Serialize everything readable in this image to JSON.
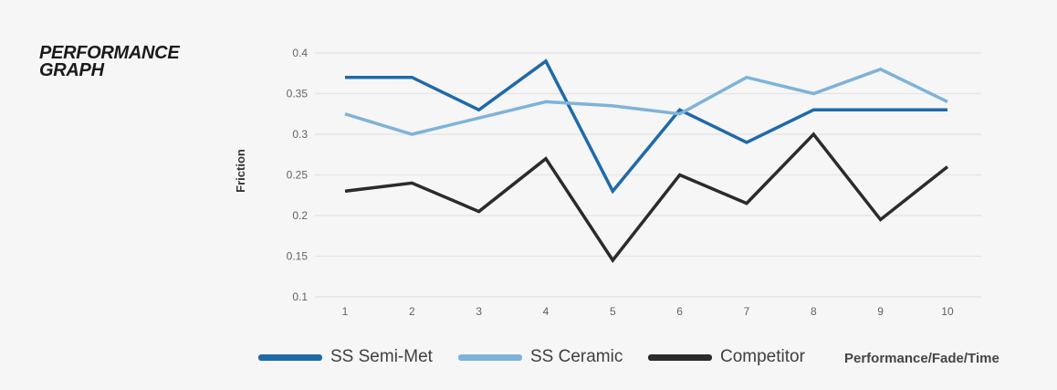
{
  "title": {
    "line1": "PERFORMANCE",
    "line2": "GRAPH"
  },
  "chart_data": {
    "type": "line",
    "x": [
      1,
      2,
      3,
      4,
      5,
      6,
      7,
      8,
      9,
      10
    ],
    "series": [
      {
        "name": "SS Semi-Met",
        "color": "#1f6aa9",
        "values": [
          0.37,
          0.37,
          0.33,
          0.39,
          0.23,
          0.33,
          0.29,
          0.33,
          0.33,
          0.33
        ]
      },
      {
        "name": "SS Ceramic",
        "color": "#7fb3d8",
        "values": [
          0.325,
          0.3,
          0.32,
          0.34,
          0.335,
          0.325,
          0.37,
          0.35,
          0.38,
          0.34
        ]
      },
      {
        "name": "Competitor",
        "color": "#2b2b2b",
        "values": [
          0.23,
          0.24,
          0.205,
          0.27,
          0.145,
          0.25,
          0.215,
          0.3,
          0.195,
          0.26
        ]
      }
    ],
    "ylabel": "Friction",
    "xlabel": "Performance/Fade/Time",
    "ylim": [
      0.1,
      0.4
    ],
    "yticks": [
      0.1,
      0.15,
      0.2,
      0.25,
      0.3,
      0.35,
      0.4
    ],
    "grid": true,
    "legend_position": "bottom"
  },
  "colors": {
    "background": "#f6f6f7",
    "grid": "#e4e4e7",
    "tick_text": "#636363"
  }
}
